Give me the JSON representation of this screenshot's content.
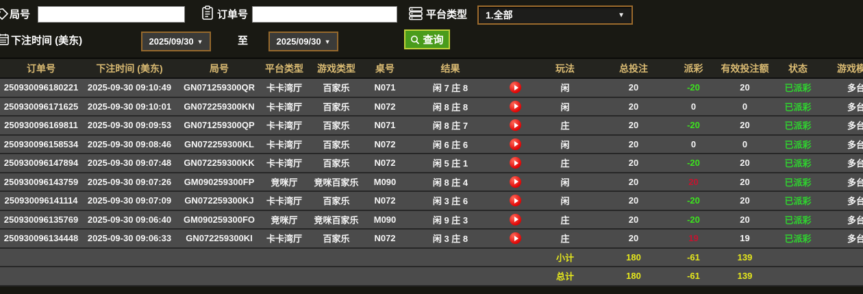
{
  "filters": {
    "game_no": {
      "label": "局号",
      "value": ""
    },
    "order_no": {
      "label": "订单号",
      "value": ""
    },
    "platform": {
      "label": "平台类型",
      "value": "1.全部"
    },
    "bet_time_label": "下注时间 (美东)",
    "date_from": "2025/09/30",
    "to_label": "至",
    "date_to": "2025/09/30",
    "query_label": "查询"
  },
  "colors": {
    "accent_gold": "#d9ba72",
    "loss_green": "#3ce41e",
    "win_red": "#c4142f",
    "status_green": "#2fd32f",
    "summary_yellow": "#e6e81c",
    "query_green": "#4a9c1c",
    "date_border_brown": "#96692c"
  },
  "table": {
    "columns": [
      "订单号",
      "下注时间 (美东)",
      "局号",
      "平台类型",
      "游戏类型",
      "桌号",
      "结果",
      "",
      "玩法",
      "总投注",
      "派彩",
      "有效投注额",
      "状态",
      "游戏模式"
    ],
    "rows": [
      {
        "order": "250930096180221",
        "time": "2025-09-30 09:10:49",
        "game_no": "GN071259300QR",
        "platform": "卡卡湾厅",
        "game_type": "百家乐",
        "table_no": "N071",
        "result": "闲 7 庄 8",
        "bet_type": "闲",
        "total_bet": "20",
        "payout": "-20",
        "payout_color": "green",
        "valid_bet": "20",
        "status": "已派彩",
        "mode": "多台"
      },
      {
        "order": "250930096171625",
        "time": "2025-09-30 09:10:01",
        "game_no": "GN072259300KN",
        "platform": "卡卡湾厅",
        "game_type": "百家乐",
        "table_no": "N072",
        "result": "闲 8 庄 8",
        "bet_type": "闲",
        "total_bet": "20",
        "payout": "0",
        "payout_color": "white",
        "valid_bet": "0",
        "status": "已派彩",
        "mode": "多台"
      },
      {
        "order": "250930096169811",
        "time": "2025-09-30 09:09:53",
        "game_no": "GN071259300QP",
        "platform": "卡卡湾厅",
        "game_type": "百家乐",
        "table_no": "N071",
        "result": "闲 8 庄 7",
        "bet_type": "庄",
        "total_bet": "20",
        "payout": "-20",
        "payout_color": "green",
        "valid_bet": "20",
        "status": "已派彩",
        "mode": "多台"
      },
      {
        "order": "250930096158534",
        "time": "2025-09-30 09:08:46",
        "game_no": "GN072259300KL",
        "platform": "卡卡湾厅",
        "game_type": "百家乐",
        "table_no": "N072",
        "result": "闲 6 庄 6",
        "bet_type": "闲",
        "total_bet": "20",
        "payout": "0",
        "payout_color": "white",
        "valid_bet": "0",
        "status": "已派彩",
        "mode": "多台"
      },
      {
        "order": "250930096147894",
        "time": "2025-09-30 09:07:48",
        "game_no": "GN072259300KK",
        "platform": "卡卡湾厅",
        "game_type": "百家乐",
        "table_no": "N072",
        "result": "闲 5 庄 1",
        "bet_type": "庄",
        "total_bet": "20",
        "payout": "-20",
        "payout_color": "green",
        "valid_bet": "20",
        "status": "已派彩",
        "mode": "多台"
      },
      {
        "order": "250930096143759",
        "time": "2025-09-30 09:07:26",
        "game_no": "GM090259300FP",
        "platform": "竞咪厅",
        "game_type": "竞咪百家乐",
        "table_no": "M090",
        "result": "闲 8 庄 4",
        "bet_type": "闲",
        "total_bet": "20",
        "payout": "20",
        "payout_color": "red",
        "valid_bet": "20",
        "status": "已派彩",
        "mode": "多台"
      },
      {
        "order": "250930096141114",
        "time": "2025-09-30 09:07:09",
        "game_no": "GN072259300KJ",
        "platform": "卡卡湾厅",
        "game_type": "百家乐",
        "table_no": "N072",
        "result": "闲 3 庄 6",
        "bet_type": "闲",
        "total_bet": "20",
        "payout": "-20",
        "payout_color": "green",
        "valid_bet": "20",
        "status": "已派彩",
        "mode": "多台"
      },
      {
        "order": "250930096135769",
        "time": "2025-09-30 09:06:40",
        "game_no": "GM090259300FO",
        "platform": "竞咪厅",
        "game_type": "竞咪百家乐",
        "table_no": "M090",
        "result": "闲 9 庄 3",
        "bet_type": "庄",
        "total_bet": "20",
        "payout": "-20",
        "payout_color": "green",
        "valid_bet": "20",
        "status": "已派彩",
        "mode": "多台"
      },
      {
        "order": "250930096134448",
        "time": "2025-09-30 09:06:33",
        "game_no": "GN072259300KI",
        "platform": "卡卡湾厅",
        "game_type": "百家乐",
        "table_no": "N072",
        "result": "闲 3 庄 8",
        "bet_type": "庄",
        "total_bet": "20",
        "payout": "19",
        "payout_color": "red",
        "valid_bet": "19",
        "status": "已派彩",
        "mode": "多台"
      }
    ],
    "subtotal": {
      "label": "小计",
      "total_bet": "180",
      "payout": "-61",
      "valid_bet": "139"
    },
    "total": {
      "label": "总计",
      "total_bet": "180",
      "payout": "-61",
      "valid_bet": "139"
    }
  }
}
